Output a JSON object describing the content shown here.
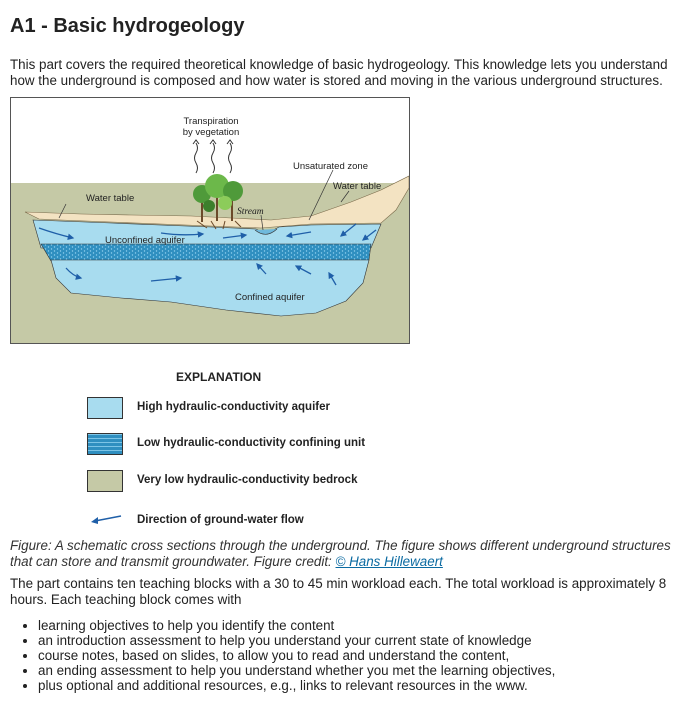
{
  "title": "A1 - Basic hydrogeology",
  "intro": "This part covers the required theoretical knowledge of basic hydrogeology. This knowledge lets you understand how the underground is composed and how water is stored and moving in the various underground structures.",
  "figure": {
    "labels": {
      "transpiration_line1": "Transpiration",
      "transpiration_line2": "by vegetation",
      "unsaturated_zone": "Unsaturated zone",
      "water_table_right": "Water table",
      "water_table_left": "Water table",
      "stream": "Stream",
      "unconfined_aquifer": "Unconfined aquifer",
      "confined_aquifer": "Confined aquifer"
    },
    "colors": {
      "high_conductivity": "#a8dcef",
      "low_conductivity": "#2f8fc0",
      "bedrock": "#c5c9a6",
      "unsaturated": "#f3e3c2",
      "flow_arrow": "#1f5fa8"
    }
  },
  "legend": {
    "title": "EXPLANATION",
    "items": [
      {
        "label": "High hydraulic-conductivity aquifer",
        "color": "#a8dcef"
      },
      {
        "label": "Low hydraulic-conductivity confining unit",
        "color": "#2f8fc0"
      },
      {
        "label": "Very low hydraulic-conductivity bedrock",
        "color": "#c5c9a6"
      }
    ],
    "arrow_label": "Direction of ground-water flow"
  },
  "caption": {
    "text": "Figure: A schematic cross sections through the underground. The figure shows different underground structures that can store and transmit groundwater. Figure credit: ",
    "credit_link": "© Hans Hillewaert"
  },
  "blocks_text": "The part contains ten teaching blocks with a 30 to 45 min workload each. The total workload is approximately 8 hours. Each teaching block comes with",
  "list_items": [
    "learning objectives to help you identify the content",
    "an introduction assessment to help you understand your current state of knowledge",
    "course notes, based on slides, to allow you to read and understand the content,",
    "an ending assessment to help you understand whether you met the learning objectives,",
    "plus optional and additional resources, e.g., links to relevant resources in the www."
  ]
}
